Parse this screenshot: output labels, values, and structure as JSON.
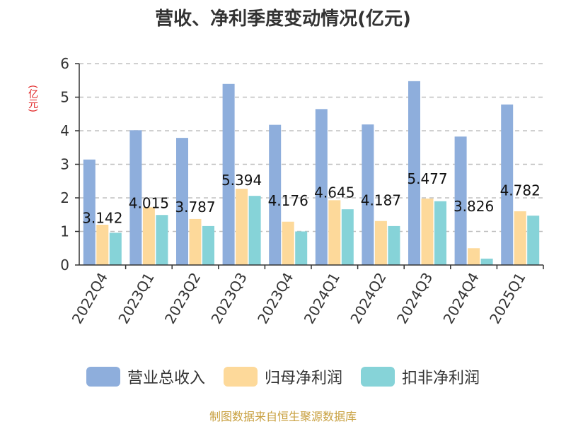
{
  "colors": {
    "revenue": "#8eaedc",
    "net_profit": "#fdd99a",
    "deducted_net_profit": "#86d3d8",
    "title": "#333333",
    "unit": "#e02020",
    "source": "#c8a040",
    "grid": "#c0c0c0"
  },
  "chart_data": {
    "type": "bar",
    "title": "营收、净利季度变动情况(亿元)",
    "ylabel": "(亿元)",
    "ylim": [
      0,
      6
    ],
    "yticks": [
      "0",
      "1",
      "2",
      "3",
      "4",
      "5",
      "6"
    ],
    "grid": true,
    "legend_position": "bottom",
    "categories": [
      "2022Q4",
      "2023Q1",
      "2023Q2",
      "2023Q3",
      "2023Q4",
      "2024Q1",
      "2024Q2",
      "2024Q3",
      "2024Q4",
      "2025Q1"
    ],
    "series": [
      {
        "name": "营业总收入",
        "values": [
          3.142,
          4.015,
          3.787,
          5.394,
          4.176,
          4.645,
          4.187,
          5.477,
          3.826,
          4.782
        ],
        "labels": [
          "3.142",
          "4.015",
          "3.787",
          "5.394",
          "4.176",
          "4.645",
          "4.187",
          "5.477",
          "3.826",
          "4.782"
        ]
      },
      {
        "name": "归母净利润",
        "values": [
          1.2,
          1.72,
          1.37,
          2.27,
          1.29,
          1.93,
          1.31,
          1.98,
          0.5,
          1.6
        ]
      },
      {
        "name": "扣非净利润",
        "values": [
          0.96,
          1.49,
          1.16,
          2.06,
          1.0,
          1.66,
          1.16,
          1.9,
          0.19,
          1.47
        ]
      }
    ]
  },
  "source_note": "制图数据来自恒生聚源数据库"
}
